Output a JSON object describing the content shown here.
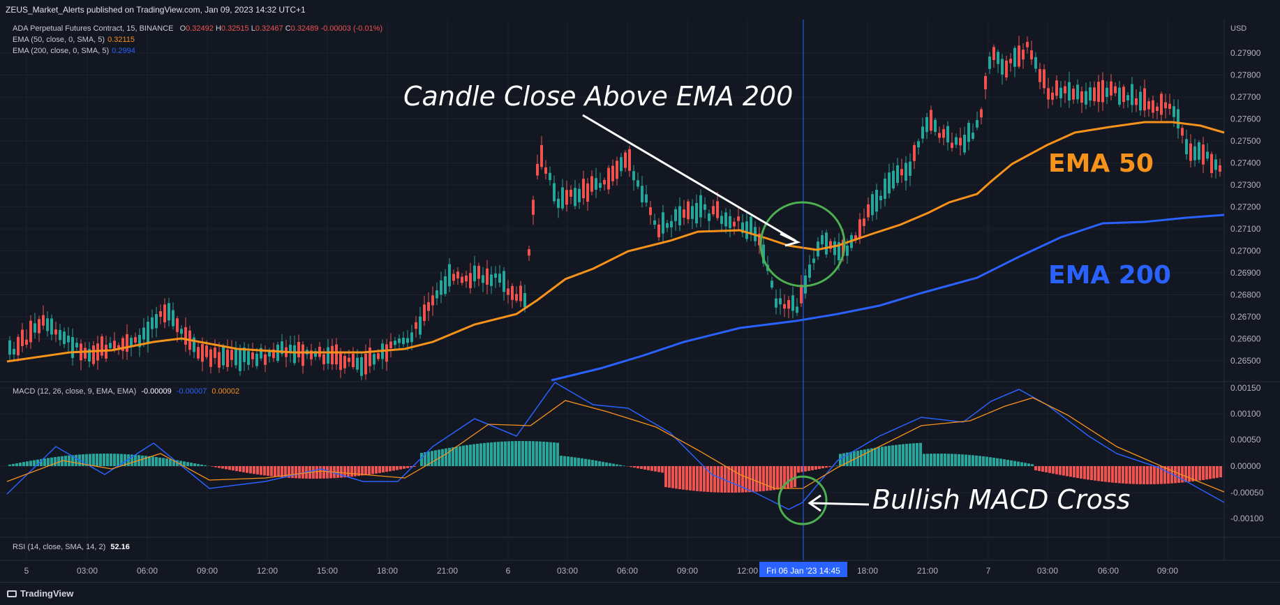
{
  "header": {
    "publish_line": "ZEUS_Market_Alerts published on TradingView.com, Jan 09, 2023 14:32 UTC+1"
  },
  "price_pane": {
    "symbol": "ADA Perpetual Futures Contract, 15, BINANCE",
    "ohlc": {
      "o_label": "O",
      "o": "0.32492",
      "h_label": "H",
      "h": "0.32515",
      "l_label": "L",
      "l": "0.32467",
      "c_label": "C",
      "c": "0.32489",
      "change": "-0.00003 (-0.01%)"
    },
    "ema50": {
      "label": "EMA (50, close, 0, SMA, 5)",
      "value": "0.32115",
      "color": "#f7931a"
    },
    "ema200": {
      "label": "EMA (200, close, 0, SMA, 5)",
      "value": "0.2994",
      "color": "#2962ff"
    },
    "currency": "USD",
    "price_ticks": [
      "0.27900",
      "0.27800",
      "0.27700",
      "0.27600",
      "0.27500",
      "0.27400",
      "0.27300",
      "0.27200",
      "0.27100",
      "0.27000",
      "0.26900",
      "0.26800",
      "0.26700",
      "0.26600",
      "0.26500"
    ]
  },
  "macd_pane": {
    "label": "MACD (12, 26, close, 9, EMA, EMA)",
    "hist_value": "-0.00009",
    "macd_value": "-0.00007",
    "signal_value": "0.00002",
    "ticks": [
      "0.00150",
      "0.00100",
      "0.00050",
      "0.00000",
      "-0.00050",
      "-0.00100"
    ]
  },
  "rsi_pane": {
    "label": "RSI (14, close, SMA, 14, 2)",
    "value": "52.16"
  },
  "time_axis": {
    "labels": [
      "5",
      "03:00",
      "06:00",
      "09:00",
      "12:00",
      "15:00",
      "18:00",
      "21:00",
      "6",
      "03:00",
      "06:00",
      "09:00",
      "12:00",
      "18:00",
      "21:00",
      "7",
      "03:00",
      "06:00",
      "09:00"
    ],
    "crosshair_label": "Fri 06 Jan '23   14:45"
  },
  "annotations": {
    "candle_close": "Candle Close Above EMA 200",
    "ema50": "EMA 50",
    "ema200": "EMA 200",
    "macd_cross": "Bullish MACD Cross"
  },
  "colors": {
    "up": "#26a69a",
    "down": "#ef5350",
    "ema50": "#f7931a",
    "ema200": "#2962ff",
    "background": "#131722"
  },
  "footer": {
    "brand": "TradingView"
  }
}
